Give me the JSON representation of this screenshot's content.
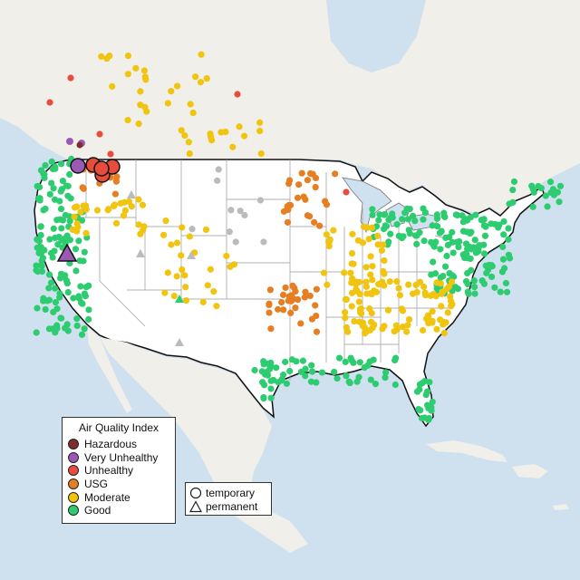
{
  "legend": {
    "title": "Air Quality Index",
    "categories": [
      {
        "label": "Hazardous",
        "color": "#7e2d2d"
      },
      {
        "label": "Very Unhealthy",
        "color": "#9b59b6"
      },
      {
        "label": "Unhealthy",
        "color": "#e74c3c"
      },
      {
        "label": "USG",
        "color": "#e67e22"
      },
      {
        "label": "Moderate",
        "color": "#f1c40f"
      },
      {
        "label": "Good",
        "color": "#2ecc71"
      }
    ]
  },
  "monitor_types": [
    {
      "label": "temporary",
      "shape": "circle"
    },
    {
      "label": "permanent",
      "shape": "triangle"
    }
  ],
  "colors": {
    "water": "#cfe0ee",
    "land": "#f2f2ee",
    "us_land": "#ffffff",
    "border": "#111111",
    "state_line": "#999999",
    "no_data": "#bbbbbb"
  }
}
